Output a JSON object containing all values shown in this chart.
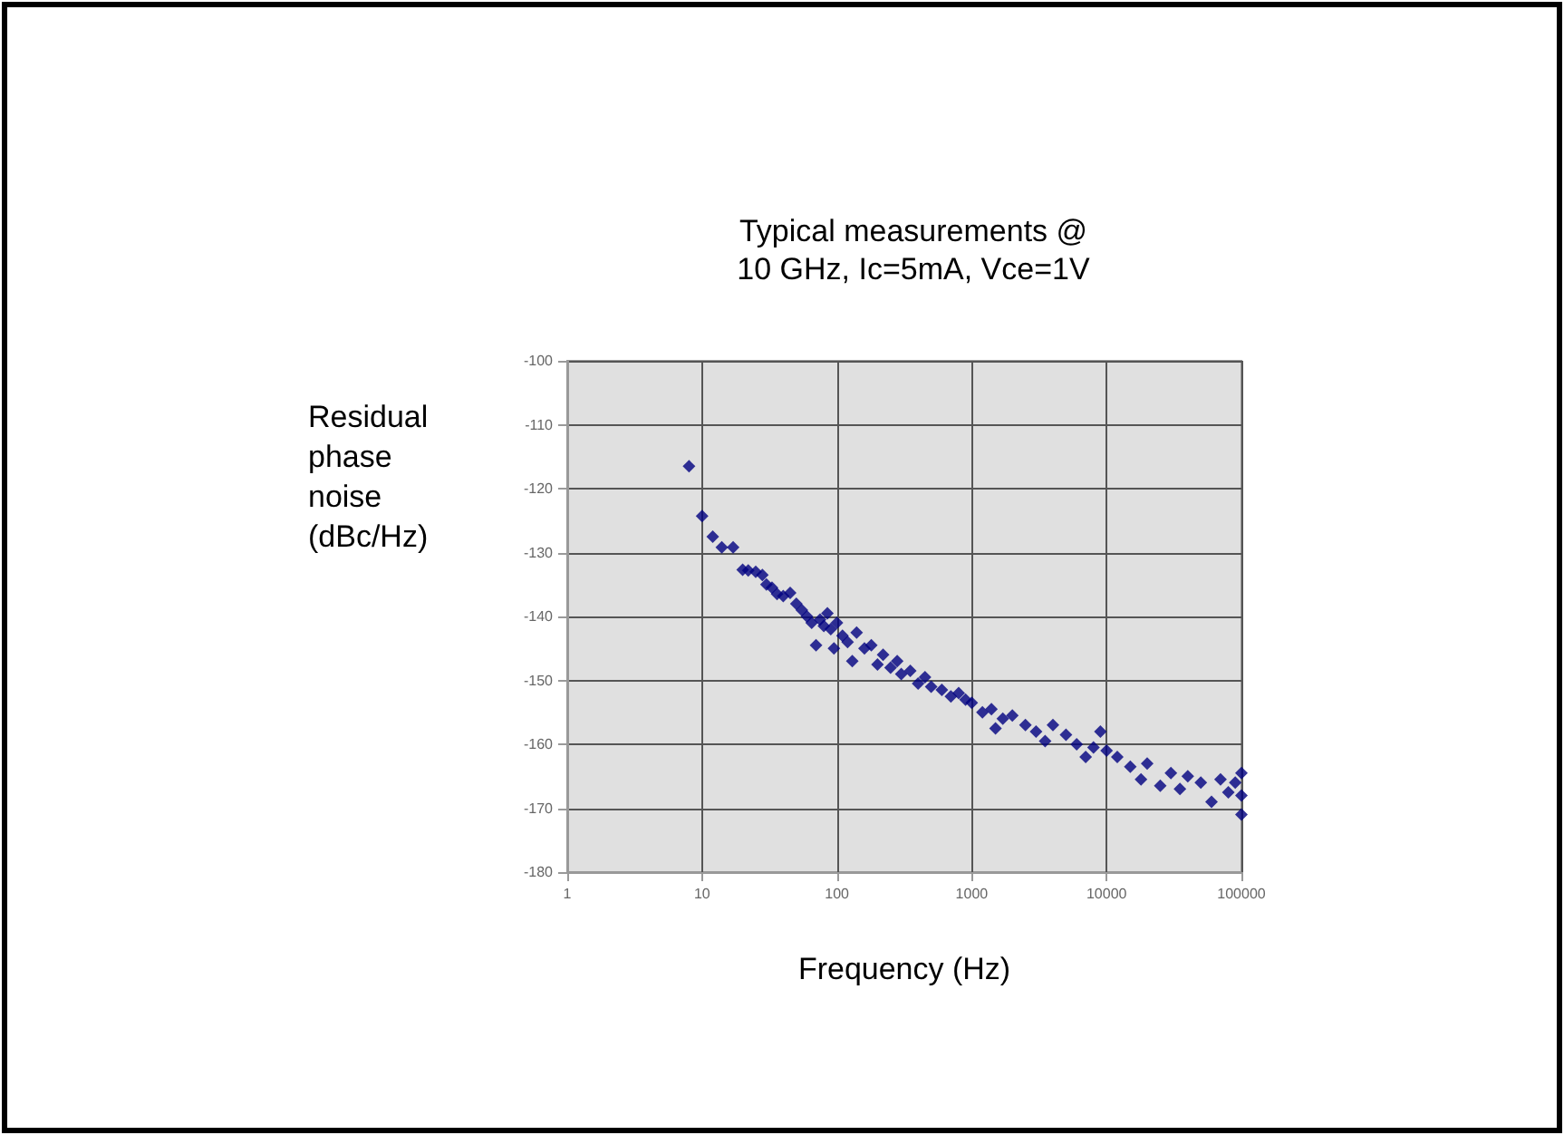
{
  "chart_data": {
    "type": "scatter",
    "title": "Typical measurements @\n10 GHz, Ic=5mA, Vce=1V",
    "xlabel": "Frequency (Hz)",
    "ylabel": "Residual\nphase\nnoise\n(dBc/Hz)",
    "x": [
      8,
      10,
      12,
      14,
      17,
      20,
      22,
      25,
      28,
      30,
      33,
      36,
      40,
      45,
      50,
      55,
      60,
      65,
      70,
      75,
      80,
      85,
      90,
      95,
      100,
      110,
      120,
      130,
      140,
      160,
      180,
      200,
      220,
      250,
      280,
      300,
      350,
      400,
      450,
      500,
      600,
      700,
      800,
      900,
      1000,
      1200,
      1400,
      1500,
      1700,
      2000,
      2500,
      3000,
      3500,
      4000,
      5000,
      6000,
      7000,
      8000,
      9000,
      10000,
      12000,
      15000,
      18000,
      20000,
      25000,
      30000,
      35000,
      40000,
      50000,
      60000,
      70000,
      80000,
      90000,
      100000,
      100000,
      100000
    ],
    "values": [
      -116.5,
      -124.3,
      -127.5,
      -129.2,
      -129.2,
      -132.7,
      -132.8,
      -133,
      -133.5,
      -135,
      -135.5,
      -136.5,
      -136.8,
      -136.3,
      -138,
      -139,
      -140,
      -141,
      -144.5,
      -140.5,
      -141.5,
      -139.5,
      -142,
      -145,
      -141,
      -143,
      -144,
      -147,
      -142.5,
      -145,
      -144.5,
      -147.5,
      -146,
      -148,
      -147,
      -149,
      -148.5,
      -150.5,
      -149.5,
      -151,
      -151.5,
      -152.5,
      -152,
      -153,
      -153.5,
      -155,
      -154.5,
      -157.5,
      -156,
      -155.5,
      -157,
      -158,
      -159.5,
      -157,
      -158.5,
      -160,
      -162,
      -160.5,
      -158,
      -161,
      -162,
      -163.5,
      -165.5,
      -163,
      -166.5,
      -164.5,
      -167,
      -165,
      -166,
      -169,
      -165.5,
      -167.5,
      -166,
      -164.5,
      -168,
      -171
    ],
    "color": "#000080",
    "marker": "diamond",
    "log": "x",
    "grid": true,
    "xlim": [
      1,
      100000
    ],
    "xticks": [
      1,
      10,
      100,
      1000,
      10000,
      100000
    ],
    "ylim": [
      -180,
      -100
    ],
    "yticks": [
      -180,
      -170,
      -160,
      -150,
      -140,
      -130,
      -120,
      -110,
      -100
    ]
  }
}
